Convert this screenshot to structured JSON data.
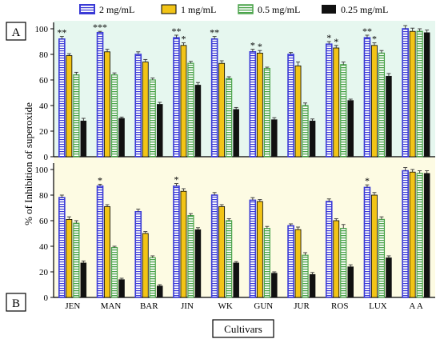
{
  "colors": {
    "panel_a_bg": "#e6f7ef",
    "panel_b_bg": "#fdfbe3",
    "series": [
      "#3a3ad6",
      "#f2c417",
      "#4aa34a",
      "#111111"
    ],
    "error_bar": "#333333",
    "axis": "#000000"
  },
  "legend": [
    "2 mg/mL",
    "1 mg/mL",
    "0.5 mg/mL",
    "0.25 mg/mL"
  ],
  "chart_data": {
    "type": "bar",
    "ylabel": "% of Inhibition of superoxide",
    "xlabel": "Cultivars",
    "ylim": [
      0,
      100
    ],
    "yticks": [
      "0",
      "20",
      "40",
      "60",
      "80",
      "100"
    ],
    "categories": [
      "JEN",
      "MAN",
      "BAR",
      "JIN",
      "WK",
      "GUN",
      "JUR",
      "ROS",
      "LUX",
      "A A"
    ],
    "panels": [
      {
        "label": "A",
        "series": [
          {
            "name": "2 mg/mL",
            "values": [
              92,
              97,
              80,
              93,
              92,
              82,
              80,
              88,
              93,
              100
            ],
            "errors": [
              2,
              1,
              2,
              2,
              2,
              2,
              1.5,
              2,
              2,
              2.5
            ]
          },
          {
            "name": "1 mg/mL",
            "values": [
              79,
              82,
              74,
              87,
              73,
              81,
              71,
              85,
              87,
              98
            ],
            "errors": [
              1.5,
              2,
              2,
              2,
              2,
              2,
              3,
              2,
              2,
              2.5
            ]
          },
          {
            "name": "0.5 mg/mL",
            "values": [
              64,
              64,
              60,
              73,
              61,
              69,
              40,
              72,
              81,
              98
            ],
            "errors": [
              2,
              1.5,
              1.5,
              1.5,
              1.5,
              1,
              2,
              2,
              2,
              2
            ]
          },
          {
            "name": "0.25 mg/mL",
            "values": [
              28,
              30,
              41,
              56,
              37,
              29,
              28,
              44,
              63,
              97
            ],
            "errors": [
              2,
              1,
              1.5,
              2,
              1.5,
              1.5,
              1.5,
              1,
              2,
              2
            ]
          }
        ],
        "annotations": [
          {
            "category": "JEN",
            "series": 0,
            "text": "**"
          },
          {
            "category": "MAN",
            "series": 0,
            "text": "***"
          },
          {
            "category": "JIN",
            "series": 0,
            "text": "**"
          },
          {
            "category": "JIN",
            "series": 1,
            "text": "*"
          },
          {
            "category": "WK",
            "series": 0,
            "text": "**"
          },
          {
            "category": "GUN",
            "series": 0,
            "text": "*"
          },
          {
            "category": "GUN",
            "series": 1,
            "text": "*"
          },
          {
            "category": "ROS",
            "series": 0,
            "text": "*"
          },
          {
            "category": "ROS",
            "series": 1,
            "text": "*"
          },
          {
            "category": "LUX",
            "series": 0,
            "text": "**"
          },
          {
            "category": "LUX",
            "series": 1,
            "text": "*"
          }
        ]
      },
      {
        "label": "B",
        "series": [
          {
            "name": "2 mg/mL",
            "values": [
              78,
              87,
              67,
              87,
              80,
              76,
              56,
              75,
              86,
              99
            ],
            "errors": [
              2,
              1.5,
              2,
              2,
              2,
              2,
              1.5,
              2,
              2,
              2.5
            ]
          },
          {
            "name": "1 mg/mL",
            "values": [
              61,
              71,
              50,
              83,
              71,
              75,
              53,
              60,
              80,
              98
            ],
            "errors": [
              2,
              1.5,
              1.5,
              2,
              1.5,
              1.5,
              2,
              1.5,
              2,
              2
            ]
          },
          {
            "name": "0.5 mg/mL",
            "values": [
              58,
              39,
              31,
              64,
              60,
              54,
              33,
              54,
              61,
              97
            ],
            "errors": [
              2,
              1,
              1.5,
              1.5,
              1.5,
              1.5,
              2,
              3,
              2,
              2
            ]
          },
          {
            "name": "0.25 mg/mL",
            "values": [
              27,
              14,
              9,
              53,
              27,
              19,
              18,
              24,
              31,
              97
            ],
            "errors": [
              1.5,
              1,
              1,
              1.5,
              1,
              1,
              1.5,
              1.5,
              1.5,
              2
            ]
          }
        ],
        "annotations": [
          {
            "category": "MAN",
            "series": 0,
            "text": "*"
          },
          {
            "category": "JIN",
            "series": 0,
            "text": "*"
          },
          {
            "category": "LUX",
            "series": 0,
            "text": "*"
          }
        ]
      }
    ]
  }
}
